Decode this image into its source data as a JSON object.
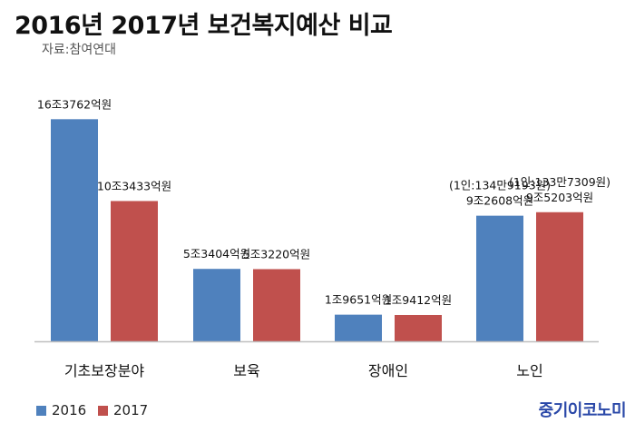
{
  "header": {
    "title": "2016년  2017년 보건복지예산 비교",
    "source": "자료:참여연대"
  },
  "brand": "중기이코노미",
  "colors": {
    "series_2016": "#4f81bd",
    "series_2017": "#c0504d",
    "axis": "#bfbfbf"
  },
  "chart_data": {
    "type": "bar",
    "title": "2016년  2017년 보건복지예산 비교",
    "categories": [
      "기초보장분야",
      "보육",
      "장애인",
      "노인"
    ],
    "ylim": [
      0,
      170000
    ],
    "grid": false,
    "legend_position": "bottom-left",
    "series": [
      {
        "name": "2016",
        "color": "#4f81bd",
        "values": [
          163762,
          53404,
          19651,
          92608
        ],
        "labels": [
          "16조3762억원",
          "5조3404억원",
          "1조9651억원",
          "9조2608억원"
        ],
        "notes": [
          "",
          "",
          "",
          "(1인:134만9193원)"
        ]
      },
      {
        "name": "2017",
        "color": "#c0504d",
        "values": [
          103433,
          53220,
          19412,
          95203
        ],
        "labels": [
          "10조3433억원",
          "5조3220억원",
          "1조9412억원",
          "9조5203억원"
        ],
        "notes": [
          "",
          "",
          "",
          "(1인:133만7309원)"
        ]
      }
    ]
  }
}
